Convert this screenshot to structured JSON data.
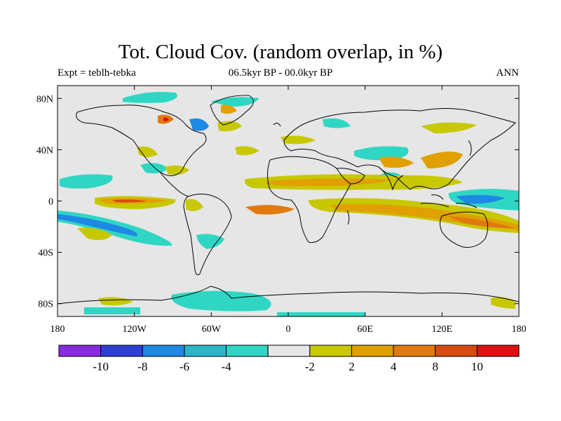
{
  "title": "Tot. Cloud Cov. (random overlap, in %)",
  "subtitle_left": "Expt = teblh-tebka",
  "subtitle_center": "06.5kyr BP - 00.0kyr BP",
  "subtitle_right": "ANN",
  "lat_ticks": [
    {
      "label": "80N",
      "lat": 80
    },
    {
      "label": "40N",
      "lat": 40
    },
    {
      "label": "0",
      "lat": 0
    },
    {
      "label": "40S",
      "lat": -40
    },
    {
      "label": "80S",
      "lat": -80
    }
  ],
  "lon_ticks": [
    {
      "label": "180",
      "lon": -180
    },
    {
      "label": "120W",
      "lon": -120
    },
    {
      "label": "60W",
      "lon": -60
    },
    {
      "label": "0",
      "lon": 0
    },
    {
      "label": "60E",
      "lon": 60
    },
    {
      "label": "120E",
      "lon": 120
    },
    {
      "label": "180",
      "lon": 180
    }
  ],
  "colorbar": {
    "colors": [
      "#8a2be2",
      "#2f3fd6",
      "#1e88e5",
      "#29b6c9",
      "#2fd6c4",
      "#e6e6e6",
      "#c8c800",
      "#dfa000",
      "#e07a10",
      "#d84a10",
      "#e01010"
    ],
    "labels": [
      "-10",
      "-8",
      "-6",
      "-4",
      "-2",
      "2",
      "4",
      "8",
      "10"
    ]
  },
  "colors": {
    "ocean": "#e6e6e6",
    "coast": "#000000"
  }
}
